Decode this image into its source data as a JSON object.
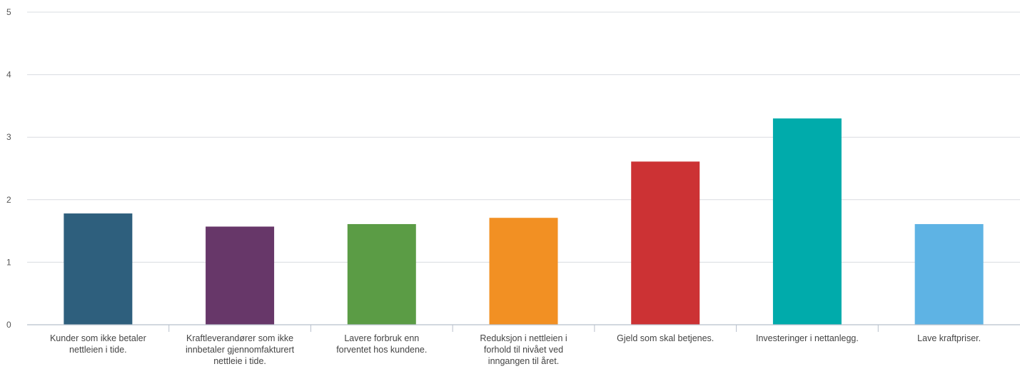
{
  "chart_data": {
    "type": "bar",
    "categories": [
      [
        "Kunder som ikke betaler",
        "nettleien i tide."
      ],
      [
        "Kraftleverandører som ikke",
        "innbetaler gjennomfakturert",
        "nettleie i tide."
      ],
      [
        "Lavere forbruk enn",
        "forventet hos kundene."
      ],
      [
        "Reduksjon i nettleien i",
        "forhold til nivået ved",
        "inngangen til året."
      ],
      [
        "Gjeld som skal betjenes."
      ],
      [
        "Investeringer i nettanlegg."
      ],
      [
        "Lave kraftpriser."
      ]
    ],
    "values": [
      1.78,
      1.57,
      1.61,
      1.71,
      2.61,
      3.3,
      1.61
    ],
    "colors": [
      "#2e5f7d",
      "#673769",
      "#5b9c45",
      "#f29023",
      "#cc3234",
      "#00abab",
      "#5eb3e4"
    ],
    "ylim": [
      0,
      5
    ],
    "yticks": [
      "0",
      "1",
      "2",
      "3",
      "4",
      "5"
    ],
    "grid": true,
    "title": "",
    "xlabel": "",
    "ylabel": ""
  }
}
